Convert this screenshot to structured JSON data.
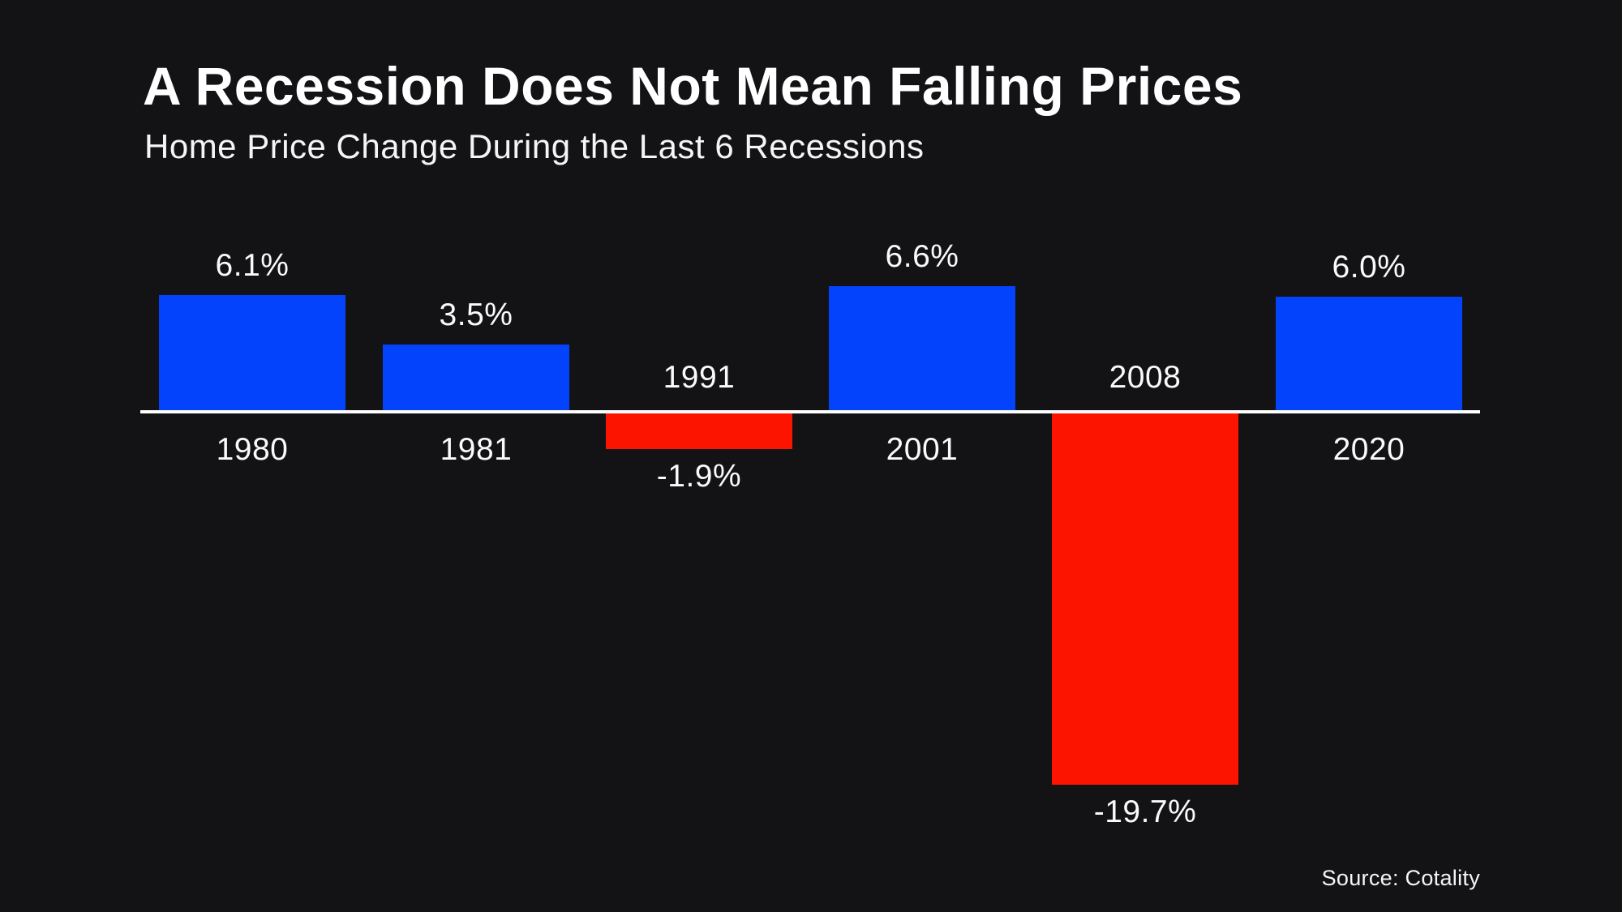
{
  "page": {
    "background": "#131316"
  },
  "header": {
    "title": "A Recession Does Not Mean Falling Prices",
    "subtitle": "Home Price Change During the Last 6 Recessions"
  },
  "footer": {
    "source": "Source: Cotality"
  },
  "chart_data": {
    "type": "bar",
    "title": "A Recession Does Not Mean Falling Prices",
    "subtitle": "Home Price Change During the Last 6 Recessions",
    "categories": [
      "1980",
      "1981",
      "1991",
      "2001",
      "2008",
      "2020"
    ],
    "values": [
      6.1,
      3.5,
      -1.9,
      6.6,
      -19.7,
      6.0
    ],
    "value_labels": [
      "6.1%",
      "3.5%",
      "-1.9%",
      "6.6%",
      "-19.7%",
      "6.0%"
    ],
    "series": [
      {
        "name": "Home Price Change",
        "values": [
          6.1,
          3.5,
          -1.9,
          6.6,
          -19.7,
          6.0
        ]
      }
    ],
    "positive_color": "#0343fb",
    "negative_color": "#fc1400",
    "baseline_color": "#ffffff",
    "label_color": "#fafafa",
    "background_color": "#131316",
    "ylim": [
      -19.7,
      6.6
    ],
    "xlabel": "",
    "ylabel": "",
    "grid": false,
    "legend": false,
    "orientation": "vertical",
    "source": "Source: Cotality"
  }
}
